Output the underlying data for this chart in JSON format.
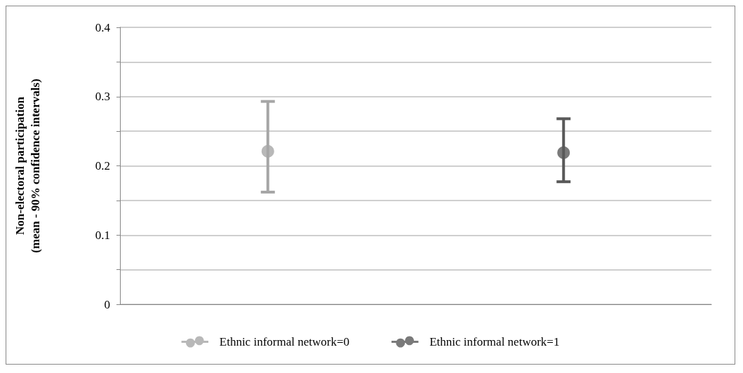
{
  "chart_data": {
    "type": "scatter",
    "ylabel": "Non-electoral participation\n(mean - 90% confidence intervals)",
    "categories": [
      null,
      null
    ],
    "series": [
      {
        "name": "Ethnic informal network=0",
        "color": "#a6a6a6",
        "values": [
          0.221,
          null
        ],
        "errors": [
          [
            0.162,
            0.293
          ],
          null
        ]
      },
      {
        "name": "Ethnic informal network=1",
        "color": "#595959",
        "values": [
          null,
          0.219
        ],
        "errors": [
          null,
          [
            0.177,
            0.268
          ]
        ]
      }
    ],
    "ylim": [
      0,
      0.4
    ],
    "yticks": [
      0,
      {
        "value": 0.05,
        "label": null
      },
      0.1,
      {
        "value": 0.15,
        "label": null
      },
      0.2,
      {
        "value": 0.25,
        "label": null
      },
      0.3,
      {
        "value": 0.35,
        "label": null
      },
      0.4
    ],
    "grid": "y",
    "legend": "bottom",
    "marker": "circle"
  }
}
